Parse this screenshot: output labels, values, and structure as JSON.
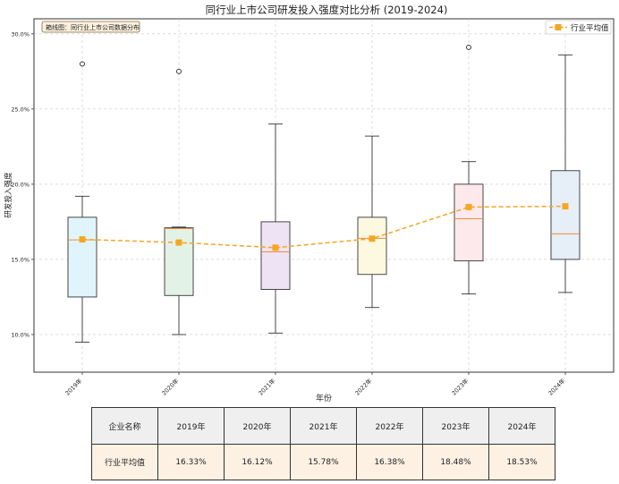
{
  "chart_data": {
    "type": "box",
    "title": "同行业上市公司研发投入强度对比分析 (2019-2024)",
    "xlabel": "年份",
    "ylabel": "研发投入强度",
    "ylim": [
      7.5,
      31.0
    ],
    "yticks": [
      10,
      15,
      20,
      25,
      30
    ],
    "ytick_labels": [
      "10.0%",
      "15.0%",
      "20.0%",
      "25.0%",
      "30.0%"
    ],
    "grid": true,
    "annotation": "箱线图：同行业上市公司数据分布",
    "legend": {
      "position": "top-right",
      "label": "行业平均值"
    },
    "categories": [
      "2019年",
      "2020年",
      "2021年",
      "2022年",
      "2023年",
      "2024年"
    ],
    "boxes": [
      {
        "category": "2019年",
        "min": 9.5,
        "q1": 12.5,
        "median": 16.3,
        "q3": 17.8,
        "max": 19.2,
        "outliers": [
          28.0
        ],
        "fill": "#e0f5fb"
      },
      {
        "category": "2020年",
        "min": 10.0,
        "q1": 12.6,
        "median": 17.05,
        "q3": 17.1,
        "max": 17.15,
        "outliers": [
          27.5
        ],
        "fill": "#e3f2e6"
      },
      {
        "category": "2021年",
        "min": 10.1,
        "q1": 13.0,
        "median": 15.5,
        "q3": 17.5,
        "max": 24.0,
        "outliers": [],
        "fill": "#eee3f5"
      },
      {
        "category": "2022年",
        "min": 11.8,
        "q1": 14.0,
        "median": 16.4,
        "q3": 17.8,
        "max": 23.2,
        "outliers": [],
        "fill": "#fdf8e0"
      },
      {
        "category": "2023年",
        "min": 12.7,
        "q1": 14.9,
        "median": 17.7,
        "q3": 20.0,
        "max": 21.5,
        "outliers": [
          29.1
        ],
        "fill": "#fde9ec"
      },
      {
        "category": "2024年",
        "min": 12.8,
        "q1": 15.0,
        "median": 16.7,
        "q3": 20.9,
        "max": 28.6,
        "outliers": [],
        "fill": "#e6eef8"
      }
    ],
    "series": [
      {
        "name": "行业平均值",
        "values": [
          16.33,
          16.12,
          15.78,
          16.38,
          18.48,
          18.53
        ],
        "color": "#f5a623"
      }
    ]
  },
  "table": {
    "header": [
      "企业名称",
      "2019年",
      "2020年",
      "2021年",
      "2022年",
      "2023年",
      "2024年"
    ],
    "rows": [
      [
        "行业平均值",
        "16.33%",
        "16.12%",
        "15.78%",
        "16.38%",
        "18.48%",
        "18.53%"
      ]
    ]
  }
}
